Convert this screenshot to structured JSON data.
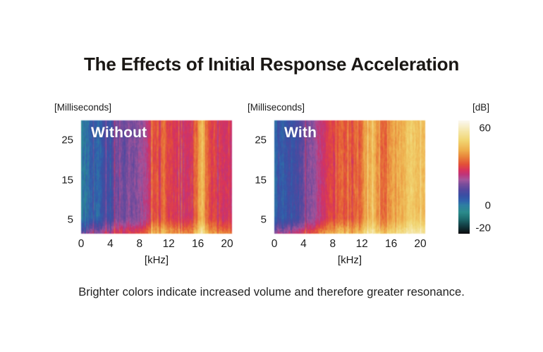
{
  "title": "The Effects of Initial Response Acceleration",
  "caption": "Brighter colors indicate increased volume and therefore greater resonance.",
  "chart_data": {
    "type": "heatmap",
    "description": "Two spectrograms (volume in dB over frequency and time) comparing response without and with Initial Response Acceleration; brighter colors = louder.",
    "x_axis": {
      "label": "[kHz]",
      "ticks": [
        0,
        4,
        8,
        12,
        16,
        20
      ],
      "range": [
        0,
        20
      ]
    },
    "y_axis": {
      "label": "[Milliseconds]",
      "ticks": [
        5,
        15,
        25
      ],
      "range": [
        1.5,
        30
      ]
    },
    "colorbar": {
      "label": "[dB]",
      "ticks": [
        60,
        0,
        -20
      ],
      "range": [
        -20,
        60
      ],
      "stops": [
        {
          "db": -20,
          "color": "#0c0d10"
        },
        {
          "db": -15,
          "color": "#123a40"
        },
        {
          "db": -10,
          "color": "#1d6a6c"
        },
        {
          "db": -5,
          "color": "#2b8b8c"
        },
        {
          "db": 0,
          "color": "#2e7fa2"
        },
        {
          "db": 3,
          "color": "#2f63ac"
        },
        {
          "db": 7,
          "color": "#3a4fa4"
        },
        {
          "db": 11,
          "color": "#55489e"
        },
        {
          "db": 15,
          "color": "#7b4d9b"
        },
        {
          "db": 18,
          "color": "#a3569d"
        },
        {
          "db": 22,
          "color": "#c03478"
        },
        {
          "db": 25,
          "color": "#d8335c"
        },
        {
          "db": 29,
          "color": "#e35038"
        },
        {
          "db": 34,
          "color": "#e8813a"
        },
        {
          "db": 39,
          "color": "#eeae4c"
        },
        {
          "db": 46,
          "color": "#f1d672"
        },
        {
          "db": 53,
          "color": "#f5e8ad"
        },
        {
          "db": 60,
          "color": "#fbf8f0"
        }
      ]
    },
    "attack": {
      "start_frac": 0.85,
      "max_boost_db": 15,
      "khz_falloff": 0.25
    },
    "panels": [
      {
        "label": "Without",
        "profile": [
          [
            0,
            1
          ],
          [
            1,
            4
          ],
          [
            2,
            5
          ],
          [
            3,
            5.5
          ],
          [
            4,
            6
          ],
          [
            4.6,
            9
          ],
          [
            5.2,
            13
          ],
          [
            6,
            15
          ],
          [
            7,
            16
          ],
          [
            8,
            18
          ],
          [
            8.6,
            21
          ],
          [
            9.2,
            26
          ],
          [
            9.8,
            30
          ],
          [
            10.4,
            32
          ],
          [
            11,
            30
          ],
          [
            11.6,
            27
          ],
          [
            12.5,
            25
          ],
          [
            13.5,
            24
          ],
          [
            14.5,
            26
          ],
          [
            15.2,
            31
          ],
          [
            15.8,
            38
          ],
          [
            16.2,
            40
          ],
          [
            16.7,
            33
          ],
          [
            17.2,
            28
          ],
          [
            18,
            26
          ],
          [
            19,
            24
          ],
          [
            20,
            25
          ]
        ]
      },
      {
        "label": "With",
        "profile": [
          [
            0,
            2
          ],
          [
            1,
            5
          ],
          [
            2,
            6
          ],
          [
            3,
            7
          ],
          [
            3.6,
            11
          ],
          [
            4.2,
            15
          ],
          [
            5,
            17
          ],
          [
            6,
            20
          ],
          [
            6.8,
            23
          ],
          [
            7.5,
            25
          ],
          [
            8.2,
            24
          ],
          [
            9,
            28
          ],
          [
            9.6,
            27
          ],
          [
            10.2,
            29
          ],
          [
            11,
            31
          ],
          [
            11.7,
            34
          ],
          [
            12.3,
            38
          ],
          [
            12.8,
            42
          ],
          [
            13.3,
            40
          ],
          [
            14,
            34
          ],
          [
            14.7,
            33
          ],
          [
            15.4,
            37
          ],
          [
            16,
            36
          ],
          [
            16.6,
            39
          ],
          [
            17.3,
            42
          ],
          [
            18,
            44
          ],
          [
            18.7,
            42
          ],
          [
            19.3,
            41
          ],
          [
            20,
            43
          ]
        ]
      }
    ]
  }
}
